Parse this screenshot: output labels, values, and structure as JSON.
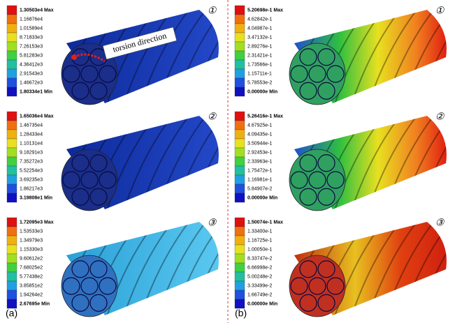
{
  "panels": [
    {
      "badge": "①",
      "legend": [
        "1.30503e4 Max",
        "1.16876e4",
        "1.01589e4",
        "8.71833e3",
        "7.26153e3",
        "5.81283e3",
        "4.36412e3",
        "2.91543e3",
        "1.46672e3",
        "1.80334e1 Min"
      ]
    },
    {
      "badge": "①",
      "legend": [
        "5.20698e-1 Max",
        "4.62842e-1",
        "4.04987e-1",
        "3.47132e-1",
        "2.89276e-1",
        "2.31421e-1",
        "1.73566e-1",
        "1.15711e-1",
        "5.78553e-2",
        "0.00000e Min"
      ]
    },
    {
      "badge": "②",
      "legend": [
        "1.65036e4 Max",
        "1.46735e4",
        "1.28433e4",
        "1.10131e4",
        "9.18291e3",
        "7.35272e3",
        "5.52254e3",
        "3.69235e3",
        "1.86217e3",
        "3.19808e1 Min"
      ]
    },
    {
      "badge": "②",
      "legend": [
        "5.26416e-1 Max",
        "4.67925e-1",
        "4.09435e-1",
        "3.50944e-1",
        "2.92453e-1",
        "2.33963e-1",
        "1.75472e-1",
        "1.16981e-1",
        "5.84907e-2",
        "0.00000e Min"
      ]
    },
    {
      "badge": "③",
      "legend": [
        "1.72095e3 Max",
        "1.53533e3",
        "1.34979e3",
        "1.15330e3",
        "9.60612e2",
        "7.68025e2",
        "5.77438e2",
        "3.85851e2",
        "1.94264e2",
        "2.67695e Min"
      ]
    },
    {
      "badge": "③",
      "legend": [
        "1.50074e-1 Max",
        "1.33400e-1",
        "1.16725e-1",
        "1.00050e-1",
        "8.33747e-2",
        "6.66998e-2",
        "5.00248e-2",
        "3.33499e-2",
        "1.66749e-2",
        "0.00000e Min"
      ]
    }
  ],
  "annotation": "torsion direction",
  "labels": [
    "(a)",
    "(b)"
  ]
}
